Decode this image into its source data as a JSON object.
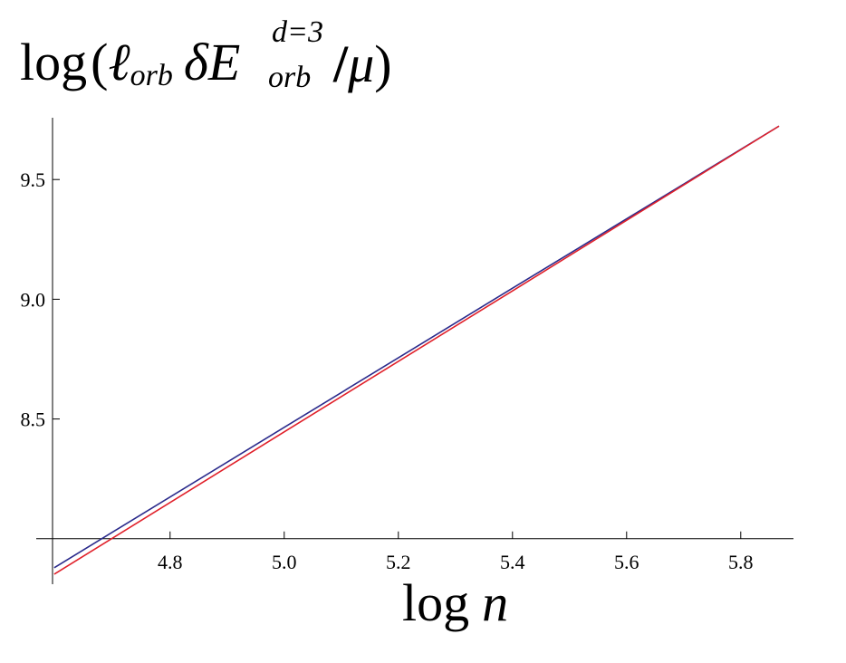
{
  "chart_data": {
    "type": "line",
    "title": [
      "log",
      "(",
      "ℓ",
      "orb",
      "δE",
      "d=3",
      "orb",
      "/",
      "μ",
      ")"
    ],
    "xlabel": [
      "log",
      "n"
    ],
    "xlim": [
      4.594,
      5.867
    ],
    "ylim": [
      7.81,
      9.758
    ],
    "axes_origin": [
      4.594,
      8.0
    ],
    "xticks": [
      4.8,
      {
        "value": 5,
        "label": "5.0"
      },
      5.2,
      5.4,
      5.6,
      5.8
    ],
    "yticks": [
      8.5,
      {
        "value": 9,
        "label": "9.0"
      },
      9.5
    ],
    "x": [
      4.597,
      5.0,
      5.4,
      5.867
    ],
    "series": [
      {
        "color": "#2b2b8c",
        "values": [
          7.879,
          8.465,
          9.046,
          9.723
        ]
      },
      {
        "color": "#e0202a",
        "values": [
          7.852,
          8.446,
          9.035,
          9.723
        ]
      }
    ]
  }
}
